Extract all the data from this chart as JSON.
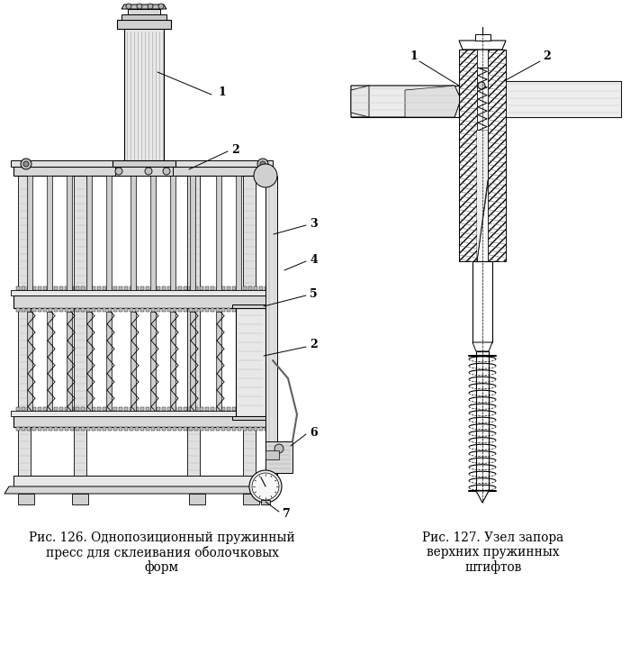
{
  "bg_color": "#ffffff",
  "fig_width": 7.0,
  "fig_height": 7.16,
  "dpi": 100,
  "caption1_lines": [
    "Рис. 126. Однопозиционный пружинный",
    "пресс для склеивания оболочковых",
    "форм"
  ],
  "caption2_lines": [
    "Рис. 127. Узел запора",
    "верхних пружинных",
    "штифтов"
  ],
  "text_color": "#000000"
}
